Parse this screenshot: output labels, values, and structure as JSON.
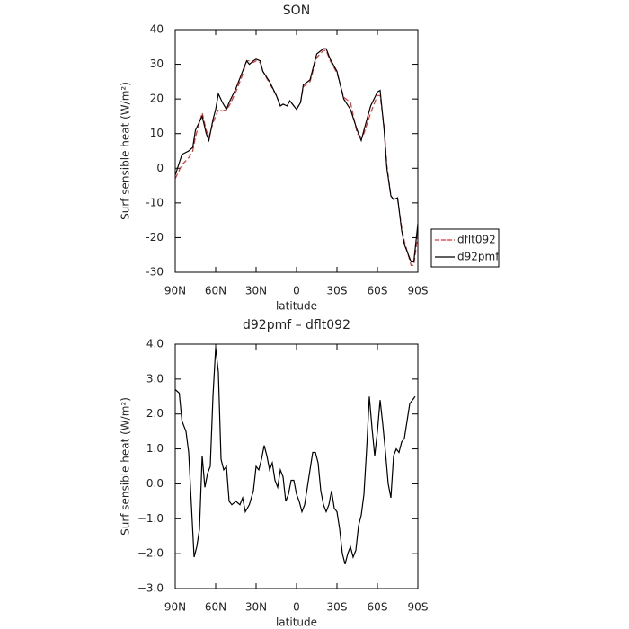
{
  "chart_data": [
    {
      "type": "line",
      "title": "SON",
      "xlabel": "latitude",
      "ylabel": "Surf sensible heat (W/m²)",
      "x": [
        90,
        85,
        80,
        77,
        75,
        70,
        67,
        65,
        62,
        60,
        58,
        55,
        52,
        50,
        45,
        40,
        37,
        35,
        32,
        30,
        27,
        25,
        20,
        15,
        12,
        10,
        7,
        5,
        2,
        0,
        -3,
        -5,
        -10,
        -15,
        -20,
        -22,
        -25,
        -30,
        -35,
        -40,
        -45,
        -48,
        -50,
        -55,
        -60,
        -62,
        -65,
        -67,
        -70,
        -72,
        -75,
        -78,
        -80,
        -85,
        -87,
        -90
      ],
      "series": [
        {
          "name": "dflt092",
          "color": "#e03030",
          "style": "dashed",
          "values": [
            -3,
            1,
            3,
            5,
            9,
            16,
            11,
            9,
            13,
            15,
            17,
            16.5,
            17,
            18,
            22,
            27,
            31,
            31,
            30.5,
            31,
            30.5,
            28,
            24.5,
            21,
            18,
            18.5,
            18,
            19.5,
            18,
            17,
            19,
            23.5,
            25,
            32,
            34,
            34,
            31,
            27.5,
            20.5,
            19,
            10,
            9,
            10,
            16,
            21,
            21,
            12,
            1,
            -8,
            -9,
            -9,
            -17,
            -21,
            -28,
            -28,
            -19
          ]
        },
        {
          "name": "d92pmf",
          "color": "#000000",
          "style": "solid",
          "values": [
            -2,
            4,
            5,
            6,
            11,
            15,
            10,
            8,
            14,
            17,
            21.5,
            19,
            17,
            19,
            23,
            28,
            31,
            30,
            31,
            31.5,
            31,
            28,
            25,
            21,
            18,
            18.5,
            18,
            19.5,
            18,
            17,
            19,
            24,
            25.5,
            33,
            34.5,
            34.5,
            31.5,
            28,
            20,
            17,
            11,
            8,
            11,
            18,
            22,
            22.5,
            11,
            0,
            -8,
            -9,
            -8.5,
            -18,
            -22,
            -27,
            -27,
            -16
          ]
        }
      ],
      "xlim": [
        90,
        -90
      ],
      "xticks": [
        {
          "value": 90,
          "label": "90N"
        },
        {
          "value": 60,
          "label": "60N"
        },
        {
          "value": 30,
          "label": "30N"
        },
        0,
        {
          "value": -30,
          "label": "30S"
        },
        {
          "value": -60,
          "label": "60S"
        },
        {
          "value": -90,
          "label": "90S"
        }
      ],
      "ylim": [
        -30,
        40
      ],
      "yticks": [
        -30,
        -20,
        -10,
        0,
        10,
        20,
        30,
        40
      ],
      "legend": "right"
    },
    {
      "type": "line",
      "title": "d92pmf – dflt092",
      "xlabel": "latitude",
      "ylabel": "Surf sensible heat (W/m²)",
      "x": [
        90,
        87,
        85,
        82,
        80,
        78,
        76,
        74,
        72,
        70,
        68,
        66,
        64,
        62,
        60,
        58,
        56,
        54,
        52,
        50,
        48,
        45,
        42,
        40,
        38,
        35,
        32,
        30,
        28,
        26,
        24,
        22,
        20,
        18,
        16,
        14,
        12,
        10,
        8,
        6,
        4,
        2,
        0,
        -2,
        -4,
        -6,
        -8,
        -10,
        -12,
        -14,
        -16,
        -18,
        -20,
        -22,
        -24,
        -26,
        -28,
        -30,
        -32,
        -34,
        -36,
        -38,
        -40,
        -42,
        -44,
        -46,
        -48,
        -50,
        -52,
        -54,
        -56,
        -58,
        -60,
        -62,
        -64,
        -66,
        -68,
        -70,
        -72,
        -74,
        -76,
        -78,
        -80,
        -82,
        -84,
        -88
      ],
      "values": [
        2.7,
        2.6,
        1.8,
        1.5,
        0.9,
        -0.6,
        -2.1,
        -1.8,
        -1.3,
        0.8,
        -0.1,
        0.3,
        0.5,
        2.5,
        3.9,
        3.2,
        0.7,
        0.4,
        0.5,
        -0.5,
        -0.6,
        -0.5,
        -0.6,
        -0.4,
        -0.8,
        -0.6,
        -0.2,
        0.5,
        0.4,
        0.7,
        1.1,
        0.8,
        0.4,
        0.6,
        0.1,
        -0.1,
        0.4,
        0.2,
        -0.5,
        -0.3,
        0.1,
        0.1,
        -0.3,
        -0.5,
        -0.8,
        -0.6,
        -0.1,
        0.4,
        0.9,
        0.9,
        0.6,
        -0.2,
        -0.6,
        -0.8,
        -0.6,
        -0.2,
        -0.7,
        -0.8,
        -1.3,
        -2.0,
        -2.3,
        -2.0,
        -1.8,
        -2.1,
        -1.9,
        -1.2,
        -0.9,
        -0.3,
        1.0,
        2.5,
        1.6,
        0.8,
        1.5,
        2.4,
        1.7,
        0.9,
        0.0,
        -0.4,
        0.8,
        1.0,
        0.9,
        1.2,
        1.3,
        1.8,
        2.3,
        2.5
      ],
      "color": "#000000",
      "xlim": [
        90,
        -90
      ],
      "xticks": [
        {
          "value": 90,
          "label": "90N"
        },
        {
          "value": 60,
          "label": "60N"
        },
        {
          "value": 30,
          "label": "30N"
        },
        0,
        {
          "value": -30,
          "label": "30S"
        },
        {
          "value": -60,
          "label": "60S"
        },
        {
          "value": -90,
          "label": "90S"
        }
      ],
      "ylim": [
        -3,
        4
      ],
      "yticks": [
        {
          "value": -3,
          "label": "−3.0"
        },
        {
          "value": -2,
          "label": "−2.0"
        },
        {
          "value": -1,
          "label": "−1.0"
        },
        {
          "value": 0,
          "label": "0.0"
        },
        {
          "value": 1,
          "label": "1.0"
        },
        {
          "value": 2,
          "label": "2.0"
        },
        {
          "value": 3,
          "label": "3.0"
        },
        {
          "value": 4,
          "label": "4.0"
        }
      ]
    }
  ]
}
